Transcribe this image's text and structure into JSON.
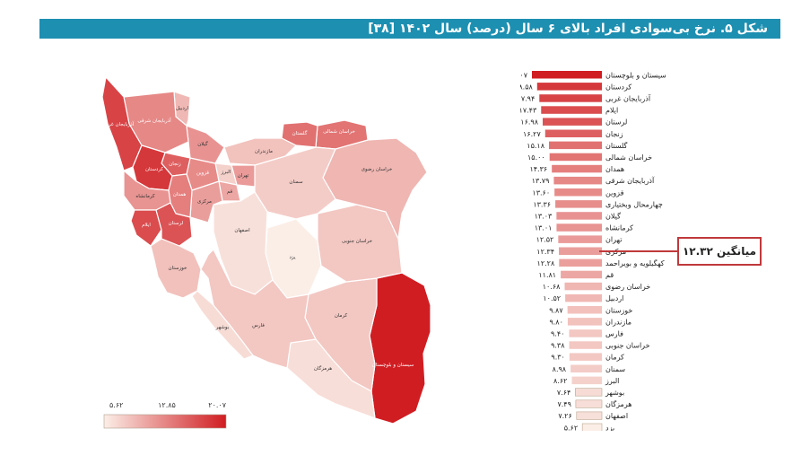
{
  "title": "شکل ۵. نرخ بی‌سوادی افراد بالای ۶ سال (درصد) سال ۱۴۰۲ [۳۸]",
  "average_label": "میانگین ۱۲.۳۲",
  "legend": {
    "min_label": "۵.۶۲",
    "mid_label": "۱۲.۸۵",
    "max_label": "۲۰.۰۷",
    "low_color": "#fbeee7",
    "high_color": "#d01d22"
  },
  "colors": {
    "high": "#d01d22",
    "low": "#fbeee7",
    "title_bar": "#1d8fb1",
    "average_marker": "#c0393b",
    "map_stroke": "#ffffff"
  },
  "map_labels": {
    "sistan": "سیستان و بلوچستان",
    "kerman": "کرمان",
    "yazd": "یزد",
    "isfahan": "اصفهان",
    "semnan": "سمنان",
    "khorasan_razavi": "خراسان رضوی",
    "khorasan_jonoubi": "خراسان جنوبی",
    "khorasan_shomali": "خراسان شمالی",
    "fars": "فارس",
    "hormozgan": "هرمزگان",
    "khuzestan": "خوزستان",
    "bushehr": "بوشهر",
    "tehran": "تهران",
    "qom": "قم",
    "markazi": "مرکزی",
    "hamedan": "همدان",
    "lorestan": "لرستان",
    "kermanshah": "کرمانشاه",
    "ilam": "ایلام",
    "kurdistan": "کردستان",
    "az_gharbi": "آذربایجان غربی",
    "az_sharghi": "آذربایجان شرقی",
    "zanjan": "زنجان",
    "qazvin": "قزوین",
    "gilan": "گیلان",
    "mazandaran": "مازندران",
    "golestan": "گلستان",
    "ardabil": "اردبیل",
    "alborz": "البرز"
  },
  "chart_data": {
    "type": "bar",
    "orientation": "horizontal",
    "title": "شکل ۵. نرخ بی‌سوادی افراد بالای ۶ سال (درصد) سال ۱۴۰۲ [۳۸]",
    "xlim": [
      0,
      20.07
    ],
    "average": 12.32,
    "categories": [
      "سیستان و بلوچستان",
      "کردستان",
      "آذربایجان غربی",
      "ایلام",
      "لرستان",
      "زنجان",
      "گلستان",
      "خراسان شمالی",
      "همدان",
      "آذربایجان شرقی",
      "قزوین",
      "چهارمحال وبختیاری",
      "گیلان",
      "کرمانشاه",
      "تهران",
      "مرکزی",
      "کهگیلویه و بویراحمد",
      "قم",
      "خراسان رضوی",
      "اردبیل",
      "خوزستان",
      "مازندران",
      "فارس",
      "خراسان جنوبی",
      "کرمان",
      "سمنان",
      "البرز",
      "بوشهر",
      "هرمزگان",
      "اصفهان",
      "یزد"
    ],
    "value_labels": [
      "۲۰.۰۷",
      "۱۸.۵۸",
      "۱۷.۹۴",
      "۱۷.۴۳",
      "۱۶.۹۸",
      "۱۶.۲۷",
      "۱۵.۱۸",
      "۱۵.۰۰",
      "۱۴.۳۶",
      "۱۳.۷۹",
      "۱۳.۶۰",
      "۱۳.۳۶",
      "۱۳.۰۳",
      "۱۳.۰۱",
      "۱۲.۵۲",
      "۱۲.۳۴",
      "۱۲.۲۸",
      "۱۱.۸۱",
      "۱۰.۶۸",
      "۱۰.۵۲",
      "۹.۸۷",
      "۹.۸۰",
      "۹.۴۰",
      "۹.۳۸",
      "۹.۳۰",
      "۸.۹۸",
      "۸.۶۲",
      "۷.۶۴",
      "۷.۴۹",
      "۷.۲۶",
      "۵.۶۲"
    ],
    "values": [
      20.07,
      18.58,
      17.94,
      17.43,
      16.98,
      16.27,
      15.18,
      15.0,
      14.36,
      13.79,
      13.6,
      13.36,
      13.03,
      13.01,
      12.52,
      12.34,
      12.28,
      11.81,
      10.68,
      10.52,
      9.87,
      9.8,
      9.4,
      9.38,
      9.3,
      8.98,
      8.62,
      7.64,
      7.49,
      7.26,
      5.62
    ]
  }
}
